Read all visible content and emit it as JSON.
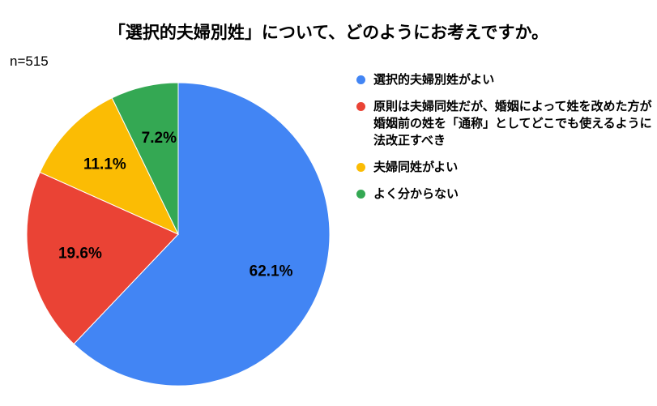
{
  "chart_data": {
    "type": "pie",
    "title": "「選択的夫婦別姓」について、どのようにお考えですか。",
    "sample_size": "n=515",
    "start_angle_deg": 0,
    "direction": "clockwise",
    "slices": [
      {
        "label": "選択的夫婦別姓がよい",
        "value": 62.1,
        "value_label": "62.1%",
        "color": "#4285F4"
      },
      {
        "label": "原則は夫婦同姓だが、婚姻によって姓を改めた方が婚姻前の姓を「通称」としてどこでも使えるように法改正すべき",
        "value": 19.6,
        "value_label": "19.6%",
        "color": "#EA4335"
      },
      {
        "label": "夫婦同姓がよい",
        "value": 11.1,
        "value_label": "11.1%",
        "color": "#FBBC04"
      },
      {
        "label": "よく分からない",
        "value": 7.2,
        "value_label": "7.2%",
        "color": "#34A853"
      }
    ],
    "legend_position": "right"
  }
}
